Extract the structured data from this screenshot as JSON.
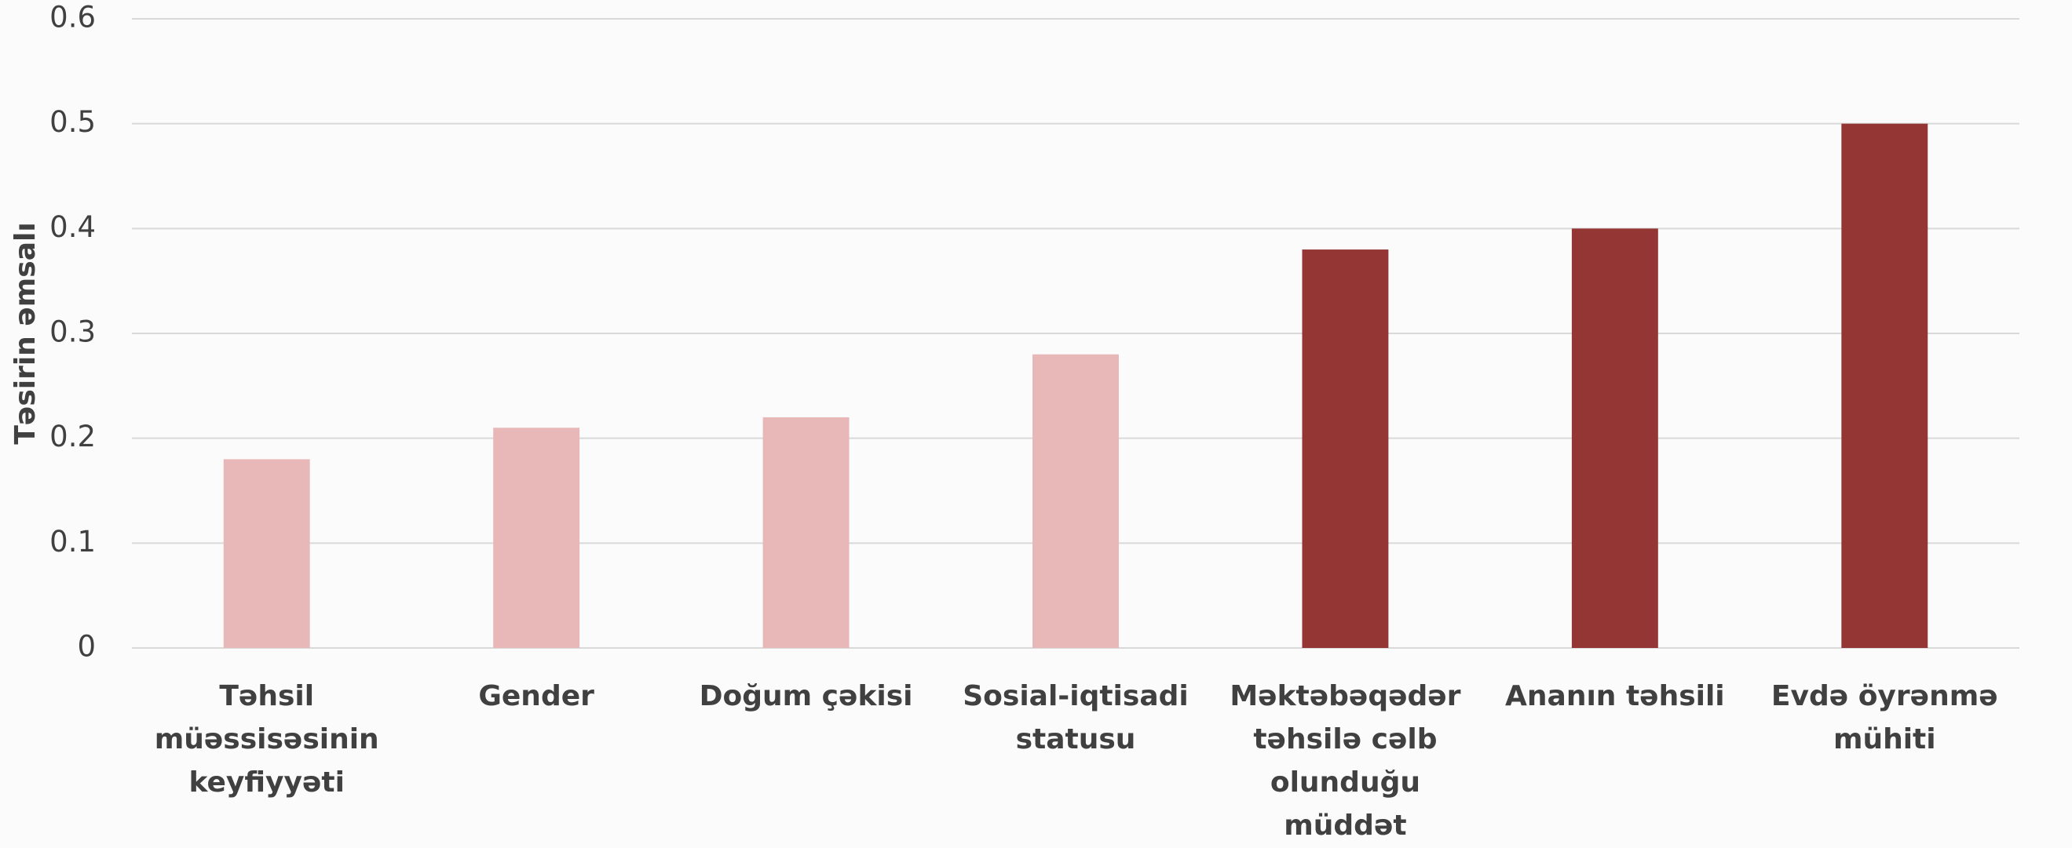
{
  "chart_data": {
    "type": "bar",
    "y_label": "Təsirin əmsalı",
    "categories": [
      "Təhsil müəssisəsinin keyfiyyəti",
      "Gender",
      "Doğum çəkisi",
      "Sosial-iqtisadi statusu",
      "Məktəbəqədər təhsilə cəlb olunduğu müddət",
      "Ananın təhsili",
      "Evdə öyrənmə mühiti"
    ],
    "values": [
      0.18,
      0.21,
      0.22,
      0.28,
      0.38,
      0.4,
      0.5
    ],
    "colors": [
      "#e8b7b7",
      "#e8b7b7",
      "#e8b7b7",
      "#e8b7b7",
      "#943634",
      "#943634",
      "#943634"
    ],
    "ylim": [
      0,
      0.6
    ],
    "yticks": [
      0,
      0.1,
      0.2,
      0.3,
      0.4,
      0.5,
      0.6
    ],
    "grid": true
  }
}
